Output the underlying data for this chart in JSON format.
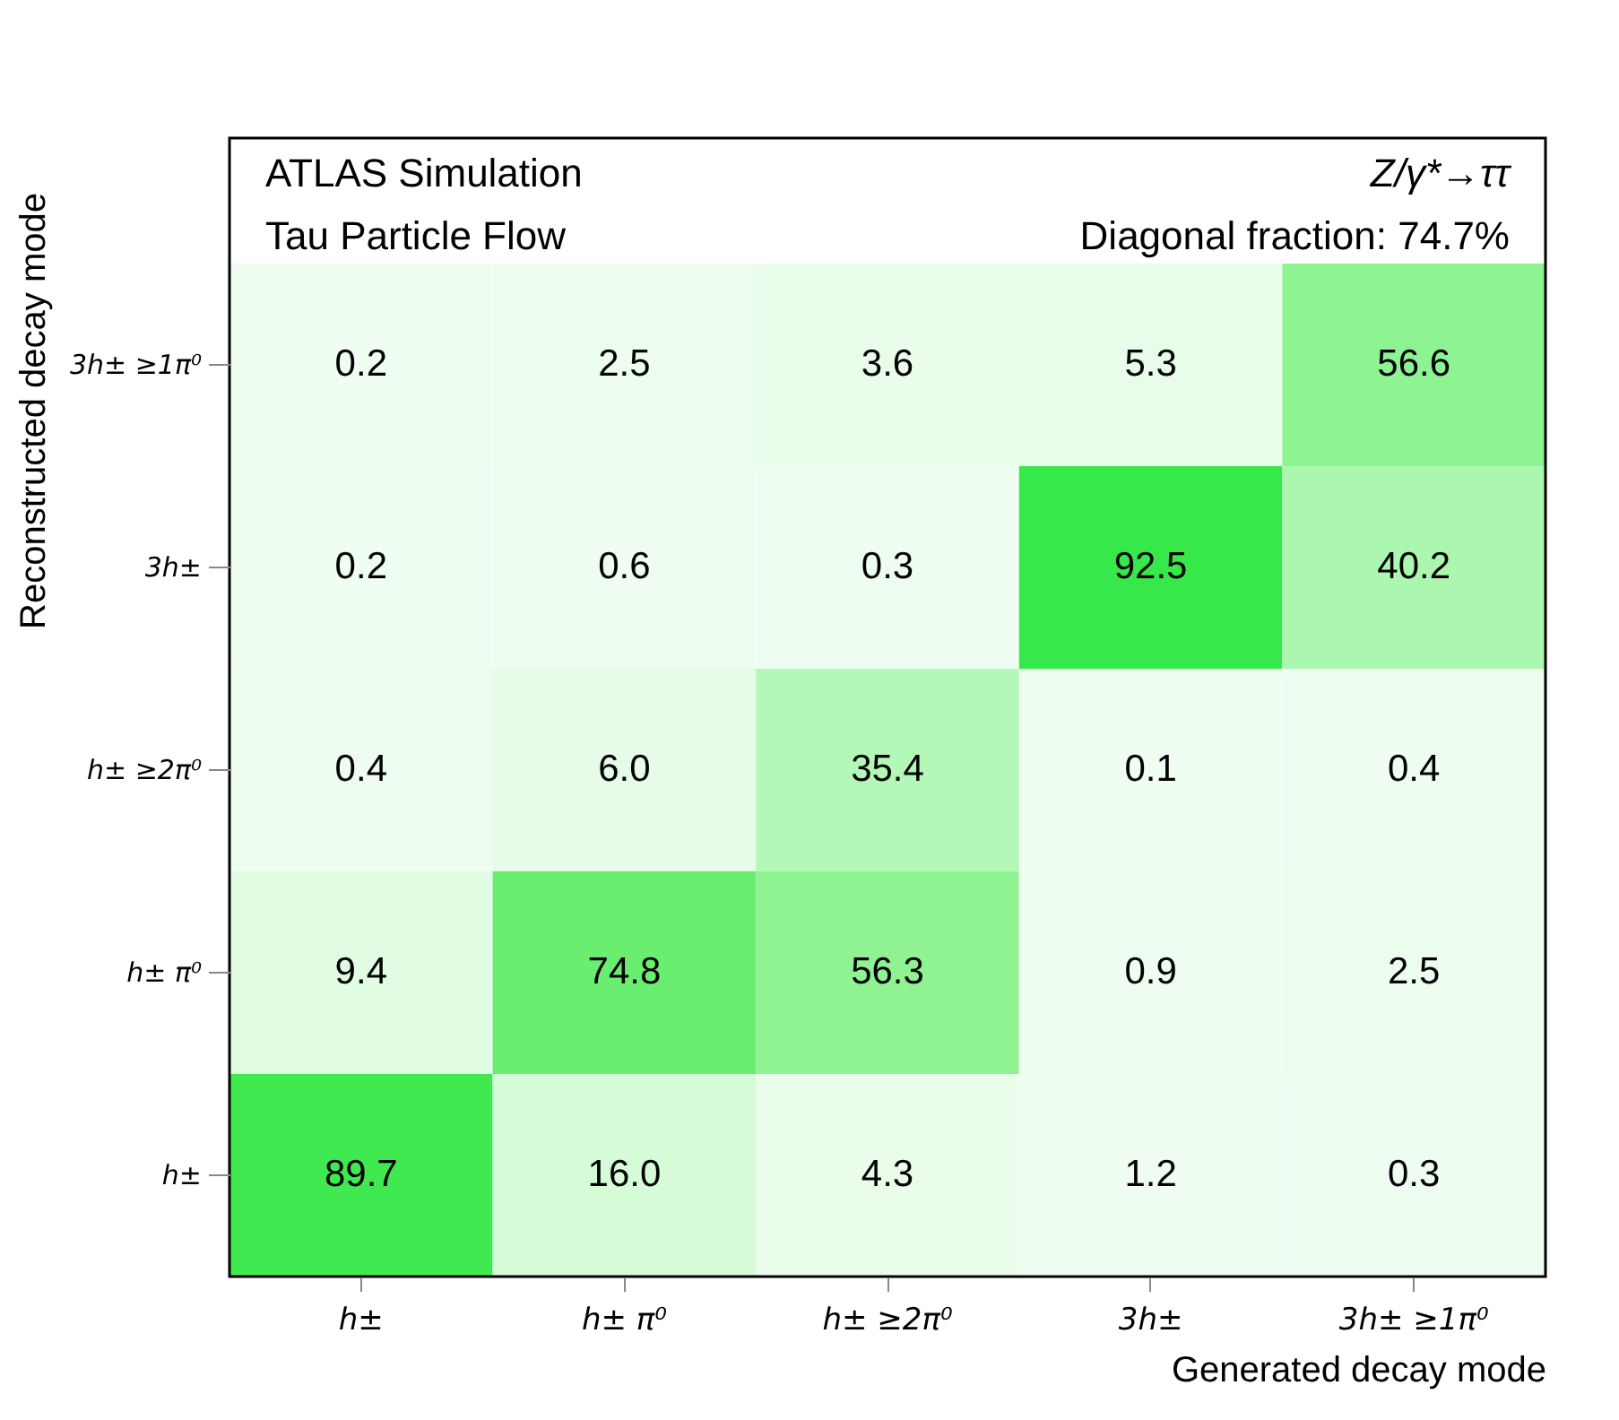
{
  "chart_data": {
    "type": "heatmap",
    "annotations": [
      "ATLAS Simulation",
      "Z/γ*→ττ",
      "Tau Particle Flow",
      "Diagonal fraction: 74.7%"
    ],
    "xlabel": "Generated decay mode",
    "ylabel": "Reconstructed decay mode",
    "categories": [
      "h±",
      "h± π⁰",
      "h± ≥2π⁰",
      "3h±",
      "3h± ≥1π⁰"
    ],
    "y_categories": [
      "3h± ≥1π⁰",
      "3h±",
      "h± ≥2π⁰",
      "h± π⁰",
      "h±"
    ],
    "cells": [
      [
        0.2,
        2.5,
        3.6,
        5.3,
        56.6
      ],
      [
        0.2,
        0.6,
        0.3,
        92.5,
        40.2
      ],
      [
        0.4,
        6.0,
        35.4,
        0.1,
        0.4
      ],
      [
        9.4,
        74.8,
        56.3,
        0.9,
        2.5
      ],
      [
        89.7,
        16.0,
        4.3,
        1.2,
        0.3
      ]
    ],
    "cell_labels": [
      [
        "0.2",
        "2.5",
        "3.6",
        "5.3",
        "56.6"
      ],
      [
        "0.2",
        "0.6",
        "0.3",
        "92.5",
        "40.2"
      ],
      [
        "0.4",
        "6.0",
        "35.4",
        "0.1",
        "0.4"
      ],
      [
        "9.4",
        "74.8",
        "56.3",
        "0.9",
        "2.5"
      ],
      [
        "89.7",
        "16.0",
        "4.3",
        "1.2",
        "0.3"
      ]
    ]
  }
}
